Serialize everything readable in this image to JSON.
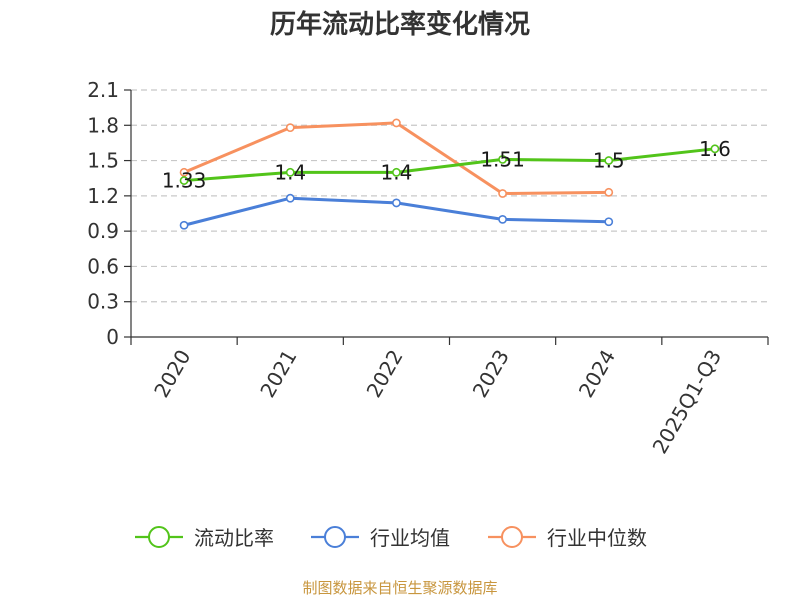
{
  "chart_data": {
    "type": "line",
    "title": "历年流动比率变化情况",
    "categories": [
      "2020",
      "2021",
      "2022",
      "2023",
      "2024",
      "2025Q1-Q3"
    ],
    "y_ticks": [
      "0",
      "0.3",
      "0.6",
      "0.9",
      "1.2",
      "1.5",
      "1.8",
      "2.1"
    ],
    "ylim": [
      0,
      2.1
    ],
    "grid": true,
    "legend_position": "bottom",
    "series": [
      {
        "name": "流动比率",
        "color": "#52c41a",
        "values": [
          1.33,
          1.4,
          1.4,
          1.51,
          1.5,
          1.6
        ],
        "labels": [
          "1.33",
          "1.4",
          "1.4",
          "1.51",
          "1.5",
          "1.6"
        ]
      },
      {
        "name": "行业均值",
        "color": "#4a7fd8",
        "values": [
          0.95,
          1.18,
          1.14,
          1.0,
          0.98,
          null
        ]
      },
      {
        "name": "行业中位数",
        "color": "#f7915f",
        "values": [
          1.4,
          1.78,
          1.82,
          1.22,
          1.23,
          null
        ]
      }
    ]
  },
  "footer": {
    "source": "制图数据来自恒生聚源数据库",
    "source_color": "#c8963e"
  }
}
